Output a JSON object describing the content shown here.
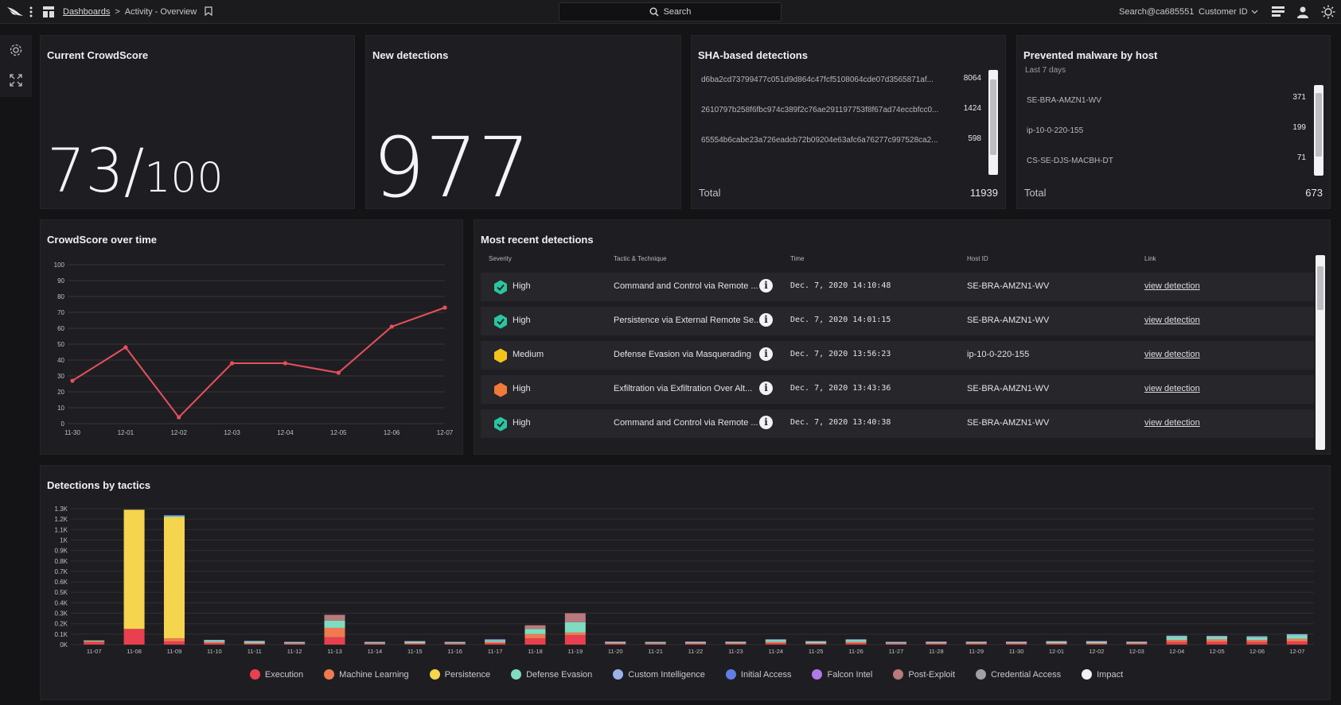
{
  "topbar": {
    "breadcrumb_link": "Dashboards",
    "breadcrumb_sep": ">",
    "breadcrumb_current": "Activity - Overview",
    "search_label": "Search",
    "user": "Search@ca685551",
    "customer_label": "Customer ID"
  },
  "crowdscore": {
    "title": "Current CrowdScore",
    "value": "73/",
    "max": "100"
  },
  "new_detections": {
    "title": "New detections",
    "value": "977"
  },
  "sha": {
    "title": "SHA-based detections",
    "rows": [
      {
        "hash": "d6ba2cd73799477c051d9d864c47fcf5108064cde07d3565871af...",
        "count": "8064"
      },
      {
        "hash": "2610797b258f6fbc974c389f2c76ae291197753f8f67ad74eccbfcc0...",
        "count": "1424"
      },
      {
        "hash": "65554b6cabe23a726eadcb72b09204e63afc6a76277c997528ca2...",
        "count": "598"
      }
    ],
    "total_label": "Total",
    "total_value": "11939"
  },
  "malware": {
    "title": "Prevented malware by host",
    "subtitle": "Last 7 days",
    "rows": [
      {
        "host": "SE-BRA-AMZN1-WV",
        "count": "371"
      },
      {
        "host": "ip-10-0-220-155",
        "count": "199"
      },
      {
        "host": "CS-SE-DJS-MACBH-DT",
        "count": "71"
      }
    ],
    "total_label": "Total",
    "total_value": "673"
  },
  "crowdscore_time": {
    "title": "CrowdScore over time",
    "chart_data": {
      "type": "line",
      "x": [
        "11-30",
        "12-01",
        "12-02",
        "12-03",
        "12-04",
        "12-05",
        "12-06",
        "12-07"
      ],
      "values": [
        27,
        48,
        4,
        38,
        38,
        32,
        61,
        73
      ],
      "ylim": [
        0,
        100
      ],
      "yticks": [
        0,
        10,
        20,
        30,
        40,
        50,
        60,
        70,
        80,
        90,
        100
      ],
      "grid": true,
      "color": "#e8505b"
    }
  },
  "recent": {
    "title": "Most recent detections",
    "headers": [
      "Severity",
      "Tactic & Technique",
      "Time",
      "Host ID",
      "Link"
    ],
    "rows": [
      {
        "severity": "High",
        "color": "#2bc4a0",
        "tactic": "Command and Control via Remote ...",
        "time": "Dec. 7, 2020 14:10:48",
        "host": "SE-BRA-AMZN1-WV",
        "link": "view detection"
      },
      {
        "severity": "High",
        "color": "#2bc4a0",
        "tactic": "Persistence via External Remote Se...",
        "time": "Dec. 7, 2020 14:01:15",
        "host": "SE-BRA-AMZN1-WV",
        "link": "view detection"
      },
      {
        "severity": "Medium",
        "color": "#f2c318",
        "tactic": "Defense Evasion via Masquerading",
        "time": "Dec. 7, 2020 13:56:23",
        "host": "ip-10-0-220-155",
        "link": "view detection"
      },
      {
        "severity": "High",
        "color": "#f07a3a",
        "tactic": "Exfiltration via Exfiltration Over Alt...",
        "time": "Dec. 7, 2020 13:43:36",
        "host": "SE-BRA-AMZN1-WV",
        "link": "view detection"
      },
      {
        "severity": "High",
        "color": "#2bc4a0",
        "tactic": "Command and Control via Remote ...",
        "time": "Dec. 7, 2020 13:40:38",
        "host": "SE-BRA-AMZN1-WV",
        "link": "view detection"
      }
    ]
  },
  "tactics": {
    "title": "Detections by tactics",
    "chart_data": {
      "type": "bar",
      "stacked": true,
      "ylim": [
        0,
        1300
      ],
      "yticks": [
        0,
        100,
        200,
        300,
        400,
        500,
        600,
        700,
        800,
        900,
        1000,
        1100,
        1200,
        1300
      ],
      "yticklabels": [
        "0K",
        "0.1K",
        "0.2K",
        "0.3K",
        "0.4K",
        "0.5K",
        "0.6K",
        "0.7K",
        "0.8K",
        "0.9K",
        "1K",
        "1.1K",
        "1.2K",
        "1.3K"
      ],
      "categories": [
        "11-07",
        "11-08",
        "11-09",
        "11-10",
        "11-11",
        "11-12",
        "11-13",
        "11-14",
        "11-15",
        "11-16",
        "11-17",
        "11-18",
        "11-19",
        "11-20",
        "11-21",
        "11-22",
        "11-23",
        "11-24",
        "11-25",
        "11-26",
        "11-27",
        "11-28",
        "11-29",
        "11-30",
        "12-01",
        "12-02",
        "12-03",
        "12-04",
        "12-05",
        "12-06",
        "12-07"
      ],
      "series": [
        {
          "name": "Execution",
          "color": "#e8404f",
          "values": [
            25,
            150,
            30,
            15,
            10,
            8,
            70,
            8,
            10,
            8,
            15,
            60,
            90,
            10,
            8,
            10,
            10,
            15,
            10,
            15,
            8,
            10,
            10,
            10,
            10,
            10,
            10,
            25,
            25,
            25,
            30
          ]
        },
        {
          "name": "Machine Learning",
          "color": "#f07a50",
          "values": [
            10,
            0,
            30,
            10,
            5,
            5,
            90,
            5,
            5,
            5,
            10,
            40,
            25,
            5,
            5,
            5,
            5,
            10,
            5,
            10,
            5,
            5,
            5,
            5,
            5,
            5,
            5,
            20,
            25,
            20,
            25
          ]
        },
        {
          "name": "Persistence",
          "color": "#f5d44e",
          "values": [
            0,
            1140,
            1160,
            0,
            0,
            0,
            0,
            0,
            0,
            0,
            0,
            0,
            0,
            0,
            0,
            0,
            0,
            0,
            0,
            0,
            0,
            0,
            0,
            0,
            0,
            0,
            0,
            0,
            0,
            0,
            0
          ]
        },
        {
          "name": "Defense Evasion",
          "color": "#7fdcc0",
          "values": [
            5,
            0,
            8,
            15,
            15,
            10,
            70,
            10,
            15,
            10,
            15,
            50,
            100,
            10,
            10,
            10,
            10,
            20,
            15,
            20,
            10,
            10,
            10,
            10,
            15,
            15,
            10,
            30,
            25,
            25,
            35
          ]
        },
        {
          "name": "Custom Intelligence",
          "color": "#9bb2e8",
          "values": [
            0,
            0,
            0,
            5,
            5,
            3,
            0,
            3,
            3,
            3,
            10,
            0,
            0,
            3,
            3,
            3,
            3,
            5,
            3,
            5,
            3,
            3,
            3,
            3,
            3,
            3,
            3,
            10,
            8,
            10,
            10
          ]
        },
        {
          "name": "Initial Access",
          "color": "#5f7ee6",
          "values": [
            0,
            0,
            10,
            0,
            0,
            0,
            0,
            0,
            0,
            0,
            0,
            0,
            0,
            0,
            0,
            0,
            0,
            0,
            0,
            0,
            0,
            0,
            0,
            0,
            0,
            0,
            0,
            0,
            0,
            0,
            0
          ]
        },
        {
          "name": "Falcon Intel",
          "color": "#b07be8",
          "values": [
            0,
            0,
            0,
            0,
            0,
            0,
            0,
            0,
            0,
            0,
            0,
            0,
            0,
            0,
            0,
            0,
            0,
            0,
            0,
            0,
            0,
            0,
            0,
            0,
            0,
            0,
            0,
            0,
            0,
            0,
            0
          ]
        },
        {
          "name": "Post-Exploit",
          "color": "#b87a7e",
          "values": [
            0,
            0,
            0,
            0,
            0,
            0,
            55,
            0,
            0,
            0,
            0,
            35,
            85,
            0,
            0,
            0,
            0,
            0,
            0,
            0,
            0,
            0,
            0,
            0,
            0,
            0,
            0,
            0,
            0,
            0,
            0
          ]
        },
        {
          "name": "Credential Access",
          "color": "#a0a0a4",
          "values": [
            0,
            0,
            0,
            0,
            0,
            0,
            0,
            0,
            0,
            0,
            0,
            0,
            0,
            0,
            0,
            0,
            0,
            0,
            0,
            0,
            0,
            0,
            0,
            0,
            0,
            0,
            0,
            0,
            0,
            0,
            0
          ]
        },
        {
          "name": "Impact",
          "color": "#f2f2f4",
          "values": [
            0,
            0,
            0,
            0,
            0,
            0,
            0,
            0,
            0,
            0,
            0,
            0,
            0,
            0,
            0,
            0,
            0,
            0,
            0,
            0,
            0,
            0,
            0,
            0,
            0,
            0,
            0,
            0,
            0,
            0,
            0
          ]
        }
      ]
    }
  }
}
